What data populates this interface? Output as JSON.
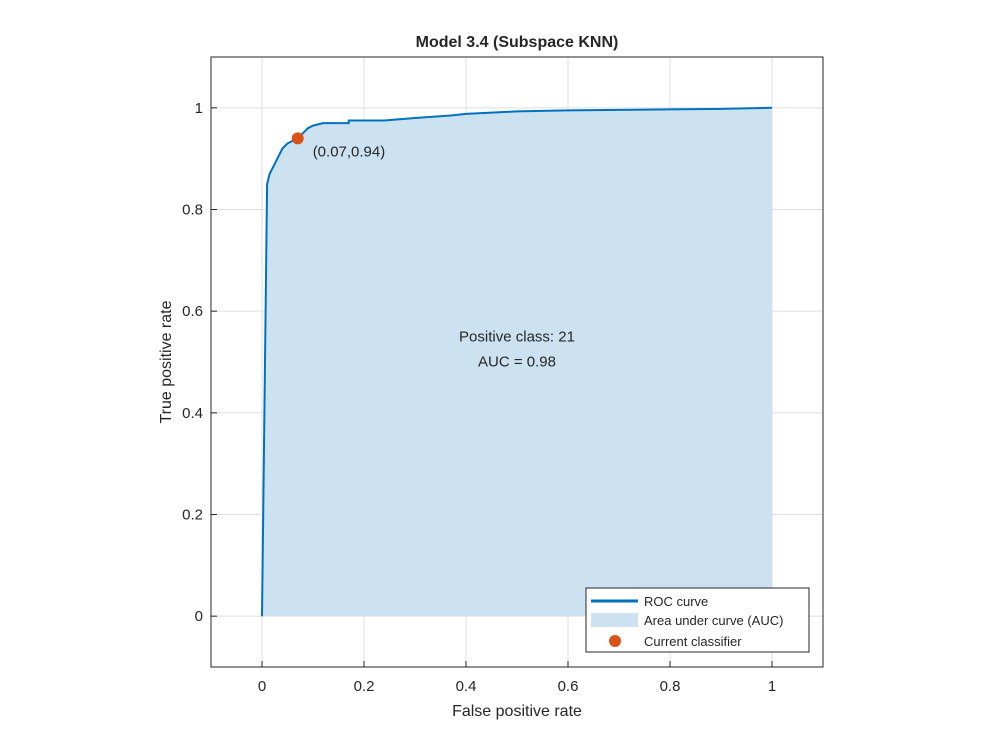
{
  "chart_data": {
    "type": "line",
    "title": "Model 3.4 (Subspace KNN)",
    "xlabel": "False positive rate",
    "ylabel": "True positive rate",
    "xlim": [
      -0.1,
      1.1
    ],
    "ylim": [
      -0.1,
      1.1
    ],
    "xticks": [
      0,
      0.2,
      0.4,
      0.6,
      0.8,
      1
    ],
    "yticks": [
      0,
      0.2,
      0.4,
      0.6,
      0.8,
      1
    ],
    "xtick_labels": [
      "0",
      "0.2",
      "0.4",
      "0.6",
      "0.8",
      "1"
    ],
    "ytick_labels": [
      "0",
      "0.2",
      "0.4",
      "0.6",
      "0.8",
      "1"
    ],
    "grid": true,
    "legend_position": "bottom-right",
    "series": [
      {
        "name": "ROC curve",
        "color": "#0072BD",
        "x": [
          0,
          0.01,
          0.015,
          0.02,
          0.03,
          0.04,
          0.05,
          0.06,
          0.07,
          0.08,
          0.09,
          0.1,
          0.12,
          0.14,
          0.17,
          0.17,
          0.24,
          0.3,
          0.37,
          0.4,
          0.5,
          0.6,
          0.7,
          0.8,
          0.9,
          1
        ],
        "y": [
          0,
          0.85,
          0.87,
          0.88,
          0.9,
          0.92,
          0.93,
          0.935,
          0.94,
          0.95,
          0.96,
          0.965,
          0.97,
          0.97,
          0.97,
          0.975,
          0.975,
          0.98,
          0.985,
          0.988,
          0.993,
          0.995,
          0.996,
          0.997,
          0.998,
          1
        ]
      }
    ],
    "auc_area": {
      "name": "Area under curve (AUC)",
      "color": "#CCE2F1"
    },
    "current_classifier": {
      "name": "Current classifier",
      "x": 0.07,
      "y": 0.94,
      "color": "#D95319",
      "label": "(0.07,0.94)"
    },
    "annotations": [
      "Positive class: 21",
      "AUC = 0.98"
    ]
  }
}
